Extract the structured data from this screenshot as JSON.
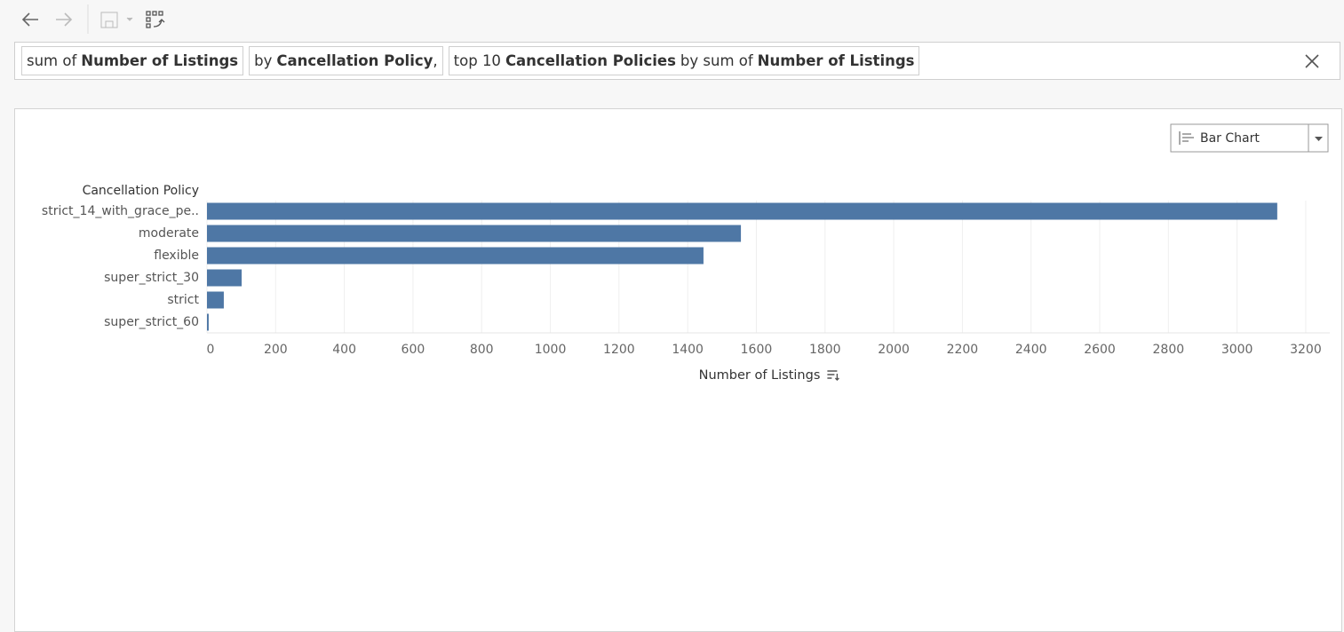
{
  "query": {
    "pills": [
      {
        "segments": [
          {
            "text": "sum of",
            "bold": false
          },
          {
            "text": "Number of Listings",
            "bold": true
          }
        ]
      },
      {
        "segments": [
          {
            "text": "by",
            "bold": false
          },
          {
            "text": "Cancellation Policy",
            "bold": true
          },
          {
            "text": ",",
            "bold": false
          }
        ]
      },
      {
        "segments": [
          {
            "text": "top 10",
            "bold": false
          },
          {
            "text": "Cancellation Policies",
            "bold": true
          },
          {
            "text": "by sum of",
            "bold": false
          },
          {
            "text": "Number of Listings",
            "bold": true
          }
        ]
      }
    ]
  },
  "chart_selector": "Bar Chart",
  "chart_data": {
    "type": "bar",
    "orientation": "horizontal",
    "category_axis_title": "Cancellation Policy",
    "value_axis_title": "Number of Listings",
    "categories": [
      "strict_14_with_grace_pe..",
      "moderate",
      "flexible",
      "super_strict_30",
      "strict",
      "super_strict_60"
    ],
    "values": [
      3117,
      1555,
      1446,
      101,
      49,
      5
    ],
    "color": "#4e77a5",
    "xlim": [
      0,
      3270
    ],
    "xticks": [
      0,
      200,
      400,
      600,
      800,
      1000,
      1200,
      1400,
      1600,
      1800,
      2000,
      2200,
      2400,
      2600,
      2800,
      3000,
      3200
    ],
    "grid": true
  }
}
